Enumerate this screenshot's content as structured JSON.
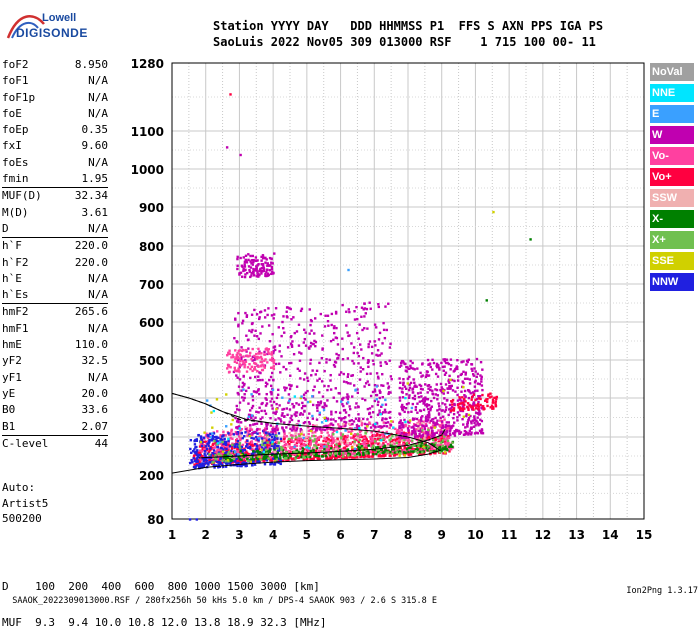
{
  "logo": {
    "line1": "Lowell",
    "line2": "DIGISONDE"
  },
  "header": {
    "line1": "Station YYYY DAY   DDD HHMMSS P1  FFS S AXN PPS IGA PS",
    "line2": "SaoLuis 2022 Nov05 309 013000 RSF    1 715 100 00- 11"
  },
  "params": [
    {
      "label": "foF2",
      "value": "8.950"
    },
    {
      "label": "foF1",
      "value": "N/A"
    },
    {
      "label": "foF1p",
      "value": "N/A"
    },
    {
      "label": "foE",
      "value": "N/A"
    },
    {
      "label": "foEp",
      "value": "0.35"
    },
    {
      "label": "fxI",
      "value": "9.60"
    },
    {
      "label": "foEs",
      "value": "N/A"
    },
    {
      "label": "fmin",
      "value": "1.95"
    },
    {
      "label": "MUF(D)",
      "value": "32.34",
      "sep": true
    },
    {
      "label": "M(D)",
      "value": "3.61"
    },
    {
      "label": "D",
      "value": "N/A"
    },
    {
      "label": "h`F",
      "value": "220.0",
      "sep": true
    },
    {
      "label": "h`F2",
      "value": "220.0"
    },
    {
      "label": "h`E",
      "value": "N/A"
    },
    {
      "label": "h`Es",
      "value": "N/A"
    },
    {
      "label": "hmF2",
      "value": "265.6",
      "sep": true
    },
    {
      "label": "hmF1",
      "value": "N/A"
    },
    {
      "label": "hmE",
      "value": "110.0"
    },
    {
      "label": "yF2",
      "value": "32.5"
    },
    {
      "label": "yF1",
      "value": "N/A"
    },
    {
      "label": "yE",
      "value": "20.0"
    },
    {
      "label": "B0",
      "value": "33.6"
    },
    {
      "label": "B1",
      "value": "2.07"
    },
    {
      "label": "C-level",
      "value": "44",
      "sep": true
    }
  ],
  "auto": {
    "line1": "Auto:",
    "line2": "Artist5",
    "line3": "500200"
  },
  "dmuf": {
    "d_line": "D    100  200  400  600  800 1000 1500 3000 [km]",
    "muf_line": "MUF  9.3  9.4 10.0 10.8 12.0 13.8 18.9 32.3 [MHz]"
  },
  "footer": {
    "left": "SAAOK_2022309013000.RSF / 280fx256h 50 kHs 5.0 km / DPS-4 SAAOK 903 / 2.6 S 315.8 E",
    "right": "Ion2Png 1.3.17"
  },
  "legend": [
    {
      "label": "NoVal",
      "color": "#a0a0a0"
    },
    {
      "label": "NNE",
      "color": "#00e5ff"
    },
    {
      "label": "E",
      "color": "#3aa0ff"
    },
    {
      "label": "W",
      "color": "#c000b0"
    },
    {
      "label": "Vo-",
      "color": "#ff40a0"
    },
    {
      "label": "Vo+",
      "color": "#ff0040"
    },
    {
      "label": "SSW",
      "color": "#f0b0b0"
    },
    {
      "label": "X-",
      "color": "#008000"
    },
    {
      "label": "X+",
      "color": "#70c050"
    },
    {
      "label": "SSE",
      "color": "#d0d000"
    },
    {
      "label": "NNW",
      "color": "#2020e0"
    }
  ],
  "chart_data": {
    "type": "scatter",
    "x_ticks": [
      "1",
      "2",
      "3",
      "4",
      "5",
      "6",
      "7",
      "8",
      "9",
      "10",
      "11",
      "12",
      "13",
      "14",
      "15"
    ],
    "y_ticks": [
      "80",
      "200",
      "300",
      "400",
      "500",
      "600",
      "700",
      "800",
      "900",
      "1000",
      "1100",
      "1280"
    ],
    "xlim": [
      1,
      15
    ],
    "y_ticks_values": [
      80,
      200,
      300,
      400,
      500,
      600,
      700,
      800,
      900,
      1000,
      1100,
      1280
    ],
    "grid": true,
    "clouds": [
      {
        "series": "Vo+",
        "color": "#ff0040",
        "x": [
          1.6,
          9.2
        ],
        "y": [
          230,
          290
        ],
        "n": 900
      },
      {
        "series": "Vo-",
        "color": "#ff40a0",
        "x": [
          1.8,
          9.3
        ],
        "y": [
          240,
          320
        ],
        "n": 700
      },
      {
        "series": "NNW",
        "color": "#2020e0",
        "x": [
          1.5,
          4.2
        ],
        "y": [
          220,
          310
        ],
        "n": 350
      },
      {
        "series": "X-",
        "color": "#008000",
        "x": [
          2.5,
          9.3
        ],
        "y": [
          240,
          265
        ],
        "n": 250
      },
      {
        "series": "X+",
        "color": "#70c050",
        "x": [
          2.0,
          9.3
        ],
        "y": [
          235,
          300
        ],
        "n": 150
      },
      {
        "series": "W",
        "color": "#c000b0",
        "x": [
          7.7,
          10.2
        ],
        "y": [
          300,
          500
        ],
        "n": 550
      },
      {
        "series": "W",
        "color": "#c000b0",
        "x": [
          2.8,
          7.5
        ],
        "y": [
          310,
          640
        ],
        "n": 700
      },
      {
        "series": "W",
        "color": "#c000b0",
        "x": [
          2.9,
          4.0
        ],
        "y": [
          720,
          780
        ],
        "n": 120
      },
      {
        "series": "Vo-",
        "color": "#ff40a0",
        "x": [
          2.6,
          4.0
        ],
        "y": [
          470,
          530
        ],
        "n": 120
      },
      {
        "series": "Vo+",
        "color": "#ff0040",
        "x": [
          9.2,
          10.6
        ],
        "y": [
          370,
          410
        ],
        "n": 80
      },
      {
        "series": "SSE",
        "color": "#d0d000",
        "x": [
          1.8,
          9.8
        ],
        "y": [
          230,
          430
        ],
        "n": 40
      },
      {
        "series": "E",
        "color": "#3aa0ff",
        "x": [
          1.8,
          9.0
        ],
        "y": [
          250,
          420
        ],
        "n": 40
      },
      {
        "series": "NNE",
        "color": "#00e5ff",
        "x": [
          1.8,
          8.0
        ],
        "y": [
          250,
          400
        ],
        "n": 20
      },
      {
        "series": "SSW",
        "color": "#f0b0b0",
        "x": [
          3.0,
          9.0
        ],
        "y": [
          260,
          330
        ],
        "n": 40
      }
    ],
    "outliers": [
      {
        "x": 2.7,
        "y": 1200,
        "color": "#ff0040"
      },
      {
        "x": 2.6,
        "y": 1060,
        "color": "#c000b0"
      },
      {
        "x": 3.0,
        "y": 1040,
        "color": "#c000b0"
      },
      {
        "x": 10.5,
        "y": 890,
        "color": "#d0d000"
      },
      {
        "x": 11.6,
        "y": 820,
        "color": "#008000"
      },
      {
        "x": 6.2,
        "y": 740,
        "color": "#3aa0ff"
      },
      {
        "x": 10.3,
        "y": 660,
        "color": "#008000"
      },
      {
        "x": 1.5,
        "y": 82,
        "color": "#2020e0"
      },
      {
        "x": 1.7,
        "y": 82,
        "color": "#2020e0"
      }
    ],
    "profile_curve": {
      "x": [
        1.0,
        2.0,
        3.0,
        4.0,
        5.0,
        6.0,
        7.0,
        8.0,
        8.6,
        8.95,
        8.6,
        8.0,
        7.0,
        6.0,
        5.0,
        4.0,
        3.2,
        2.5,
        2.0,
        1.5,
        1.0
      ],
      "y": [
        205,
        220,
        228,
        234,
        238,
        240,
        242,
        246,
        255,
        265,
        285,
        300,
        315,
        322,
        328,
        335,
        345,
        365,
        385,
        400,
        412
      ]
    },
    "trace_curve": {
      "x": [
        1.8,
        3.0,
        4.0,
        5.0,
        6.0,
        7.0,
        8.0,
        8.6,
        9.0,
        9.1
      ],
      "y": [
        245,
        250,
        255,
        258,
        262,
        268,
        278,
        292,
        305,
        320
      ]
    }
  }
}
